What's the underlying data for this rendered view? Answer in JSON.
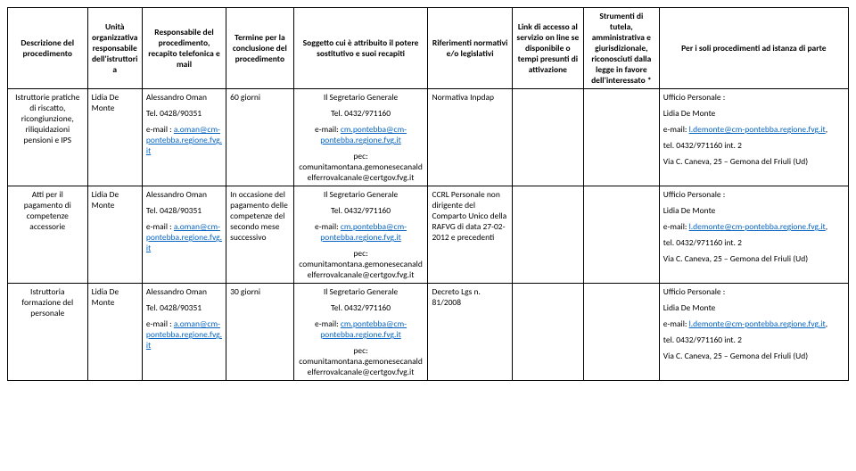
{
  "headers": [
    "Descrizione del procedimento",
    "Unità organizzativa responsabile dell'istruttoria",
    "Responsabile del procedimento, recapito telefonica e mail",
    "Termine per la conclusione del procedimento",
    "Soggetto cui è attribuito il potere sostitutivo e suoi recapiti",
    "Riferimenti normativi e/o legislativi",
    "Link di accesso al servizio on line se disponibile o tempi presunti di attivazione",
    "Strumenti di tutela, amministrativa e giurisdizionale, riconosciuti dalla legge in favore dell'interessato *",
    "Per i soli procedimenti ad istanza di parte"
  ],
  "rows": [
    {
      "desc": "Istruttorie pratiche di riscatto, ricongiunzione, riliquidazioni pensioni e IPS",
      "unit": "Lidia De Monte",
      "resp": {
        "name": "Alessandro Oman",
        "tel": "Tel. 0428/90351",
        "email_label": "e-mail : ",
        "email": "a.oman@cm-pontebba.regione.fvg.it"
      },
      "term": "60 giorni",
      "sogg": {
        "title": "Il Segretario Generale",
        "tel": "Tel. 0432/971160",
        "email_label": "e-mail: ",
        "email": "cm.pontebba@cm-pontebba.regione.fvg.it",
        "pec_label": "pec:",
        "pec1": "comunitamontana.gemonesecanaldelferrovalcanale@certgov.fvg.it"
      },
      "rif": "Normativa Inpdap",
      "link": "",
      "strum": "",
      "parte": {
        "office": "Ufficio Personale :",
        "name": "Lidia De Monte",
        "email_label": "e-mail: ",
        "email": "l.demonte@cm-pontebba.regione.fvg.it",
        "tel_suffix": ",",
        "tel2": "tel. 0432/971160 int. 2",
        "addr": "Via C. Caneva, 25 – Gemona del Friuli (Ud)"
      }
    },
    {
      "desc": "Atti per il pagamento di competenze accessorie",
      "unit": "Lidia De Monte",
      "resp": {
        "name": "Alessandro Oman",
        "tel": "Tel. 0428/90351",
        "email_label": "e-mail : ",
        "email": "a.oman@cm-pontebba.regione.fvg.it"
      },
      "term": "In occasione del pagamento delle competenze del secondo mese successivo",
      "sogg": {
        "title": "Il Segretario Generale",
        "tel": "Tel. 0432/971160",
        "email_label": "e-mail: ",
        "email": "cm.pontebba@cm-pontebba.regione.fvg.it",
        "pec_label": "pec:",
        "pec1": "comunitamontana.gemonesecanaldelferrovalcanale@certgov.fvg.it"
      },
      "rif": "CCRL Personale non dirigente del Comparto Unico della RAFVG di data 27-02-2012 e precedenti",
      "link": "",
      "strum": "",
      "parte": {
        "office": "Ufficio Personale :",
        "name": "Lidia De Monte",
        "email_label": "e-mail: ",
        "email": "l.demonte@cm-pontebba.regione.fvg.it",
        "tel_suffix": ",",
        "tel2": "tel. 0432/971160 int. 2",
        "addr": "Via C. Caneva, 25 – Gemona del Friuli (Ud)"
      }
    },
    {
      "desc": "Istruttoria formazione del personale",
      "unit": "Lidia De Monte",
      "resp": {
        "name": "Alessandro Oman",
        "tel": "Tel. 0428/90351",
        "email_label": "e-mail : ",
        "email": "a.oman@cm-pontebba.regione.fvg.it"
      },
      "term": "30 giorni",
      "sogg": {
        "title": "Il Segretario Generale",
        "tel": "Tel. 0432/971160",
        "email_label": "e-mail: ",
        "email": "cm.pontebba@cm-pontebba.regione.fvg.it",
        "pec_label": "pec:",
        "pec1": "comunitamontana.gemonesecanaldelferrovalcanale@certgov.fvg.it"
      },
      "rif": "Decreto Lgs n. 81/2008",
      "link": "",
      "strum": "",
      "parte": {
        "office": "Ufficio Personale :",
        "name": "Lidia De Monte",
        "email_label": "e-mail: ",
        "email": "l.demonte@cm-pontebba.regione.fvg.it",
        "tel_suffix": ",",
        "tel2": "tel. 0432/971160 int. 2",
        "addr": "Via C. Caneva, 25 – Gemona del Friuli (Ud)"
      }
    }
  ]
}
